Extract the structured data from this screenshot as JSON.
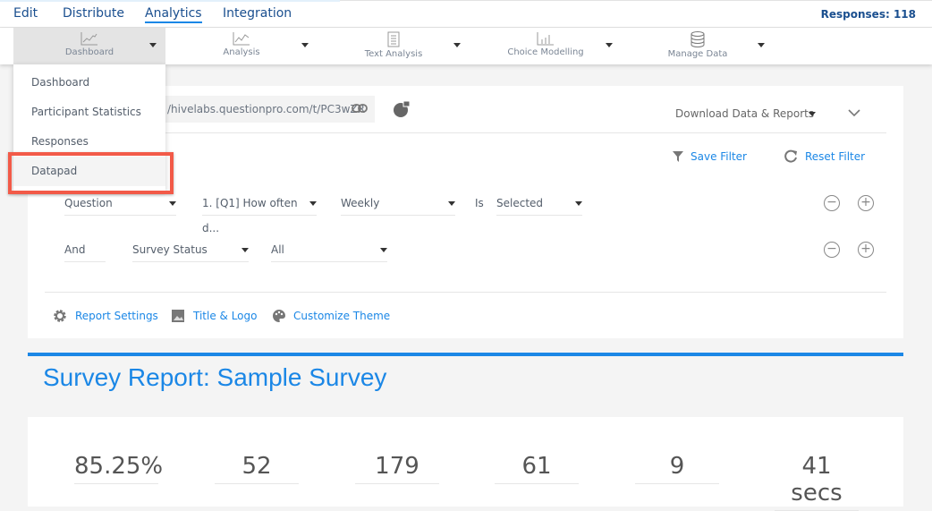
{
  "topnav": {
    "items": [
      {
        "label": "Edit"
      },
      {
        "label": "Distribute"
      },
      {
        "label": "Analytics",
        "active": true
      },
      {
        "label": "Integration"
      }
    ],
    "responses": "Responses: 118"
  },
  "subnav": {
    "items": [
      {
        "label": "Dashboard",
        "icon": "line-chart-icon",
        "active": true
      },
      {
        "label": "Analysis",
        "icon": "scatter-chart-icon"
      },
      {
        "label": "Text Analysis",
        "icon": "document-icon"
      },
      {
        "label": "Choice Modelling",
        "icon": "bar-chart-icon"
      },
      {
        "label": "Manage Data",
        "icon": "database-icon"
      }
    ]
  },
  "dropdown": {
    "items": [
      {
        "label": "Dashboard"
      },
      {
        "label": "Participant Statistics"
      },
      {
        "label": "Responses"
      },
      {
        "label": "Datapad",
        "highlighted": true
      }
    ]
  },
  "panel": {
    "url": "/hivelabs.questionpro.com/t/PC3wZR",
    "download": "Download Data & Reports",
    "save_filter": "Save Filter",
    "reset_filter": "Reset Filter",
    "row1": {
      "field": "Question",
      "question": "1. [Q1] How often d...",
      "answer": "Weekly",
      "op": "Is",
      "state": "Selected"
    },
    "row2": {
      "conj": "And",
      "field": "Survey Status",
      "value": "All"
    },
    "report_settings": "Report Settings",
    "title_logo": "Title & Logo",
    "customize_theme": "Customize Theme"
  },
  "report": {
    "title": "Survey Report: Sample Survey",
    "stats": [
      "85.25%",
      "52",
      "179",
      "61",
      "9",
      "41 secs"
    ]
  },
  "colors": {
    "accent": "#1b87e6",
    "nav_text": "#1a4f8f",
    "highlight": "#f25a48"
  }
}
